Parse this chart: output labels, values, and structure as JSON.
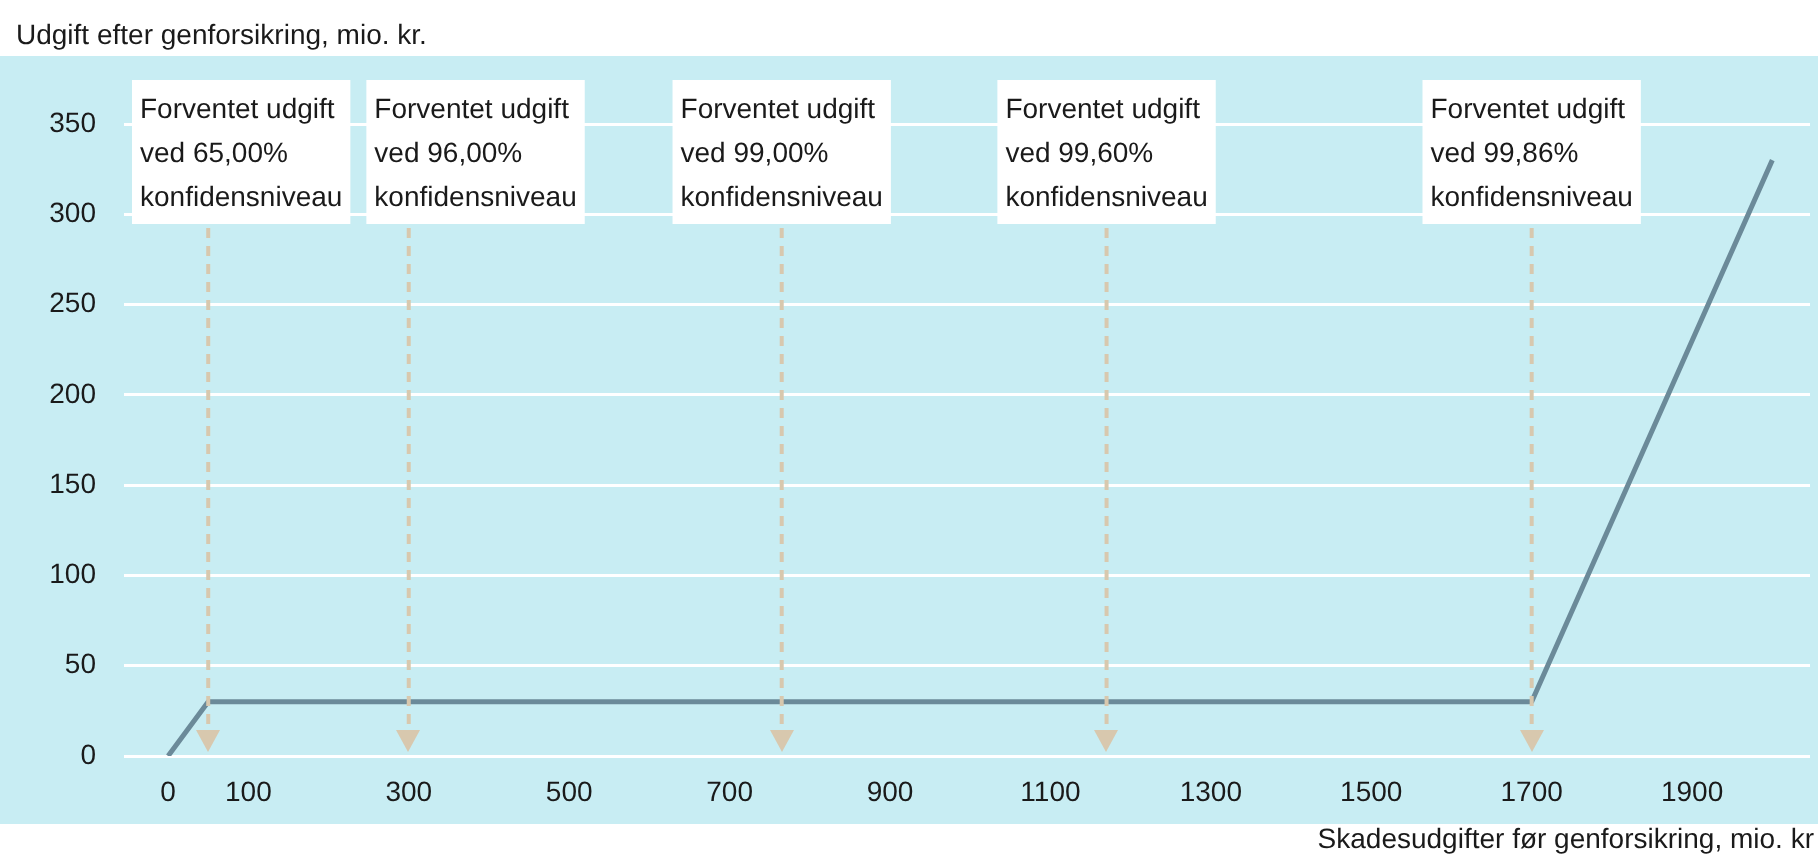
{
  "chart_data": {
    "type": "line",
    "ylabel": "Udgift efter genforsikring, mio. kr.",
    "xlabel": "Skadesudgifter før genforsikring, mio. kr",
    "x": [
      0,
      50,
      1700,
      2000
    ],
    "series": [
      {
        "color": "#6b8a99",
        "values": [
          0,
          30,
          30,
          330
        ]
      }
    ],
    "xlim": [
      -55,
      2047
    ],
    "xticks": [
      0,
      100,
      300,
      500,
      700,
      900,
      1100,
      1300,
      1500,
      1700,
      1900
    ],
    "ylim": [
      0,
      350
    ],
    "yticks": [
      0,
      50,
      100,
      150,
      200,
      250,
      300,
      350
    ],
    "grid": "y",
    "legend": false,
    "marker": "none",
    "line_style": "solid",
    "ref_lines": [
      {
        "axis": "x",
        "value": 50,
        "label": "Forventet udgift\nved 65,00%\nkonfidensniveau",
        "color": "#d8c8ae",
        "line_style": "dashed"
      },
      {
        "axis": "x",
        "value": 300,
        "label": "Forventet udgift\nved 96,00%\nkonfidensniveau",
        "color": "#d8c8ae",
        "line_style": "dashed"
      },
      {
        "axis": "x",
        "value": 765,
        "label": "Forventet udgift\nved 99,00%\nkonfidensniveau",
        "color": "#d8c8ae",
        "line_style": "dashed"
      },
      {
        "axis": "x",
        "value": 1170,
        "label": "Forventet udgift\nved 99,60%\nkonfidensniveau",
        "color": "#d8c8ae",
        "line_style": "dashed"
      },
      {
        "axis": "x",
        "value": 1700,
        "label": "Forventet udgift\nved 99,86%\nkonfidensniveau",
        "color": "#d8c8ae",
        "line_style": "dashed"
      }
    ]
  }
}
